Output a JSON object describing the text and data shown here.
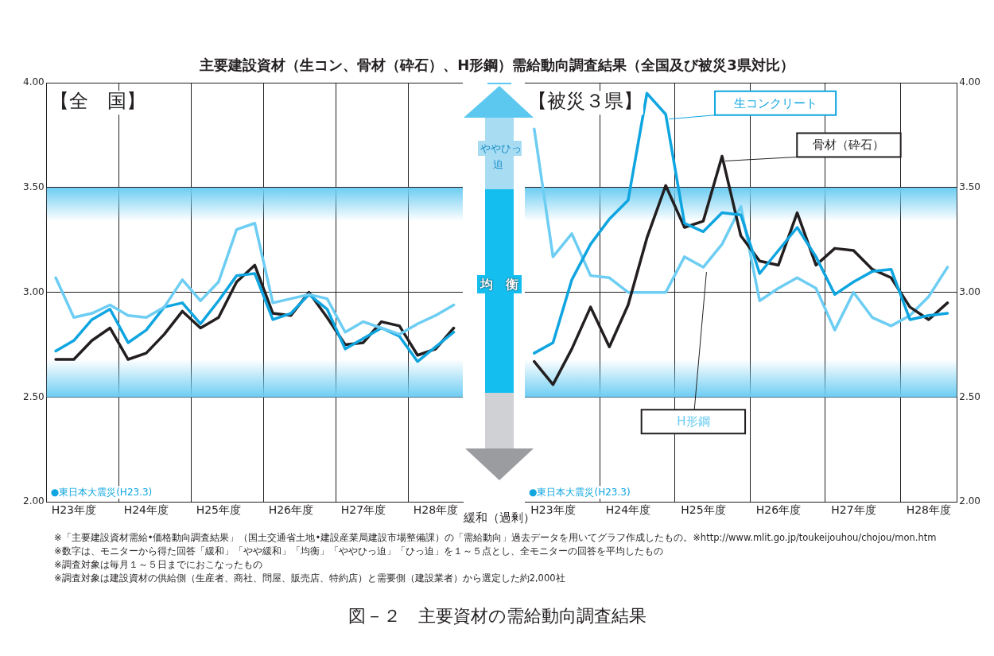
{
  "chart_data": [
    {
      "type": "line",
      "title": "主要建設資材（生コン、骨材（砕石）、H形鋼）需給動向調査結果（全国及び被災3県対比）",
      "subtitle": "【全　国】",
      "categories": [
        null,
        "H23年度",
        null,
        null,
        null,
        "H24年度",
        null,
        null,
        null,
        "H25年度",
        null,
        null,
        null,
        "H26年度",
        null,
        null,
        null,
        "H27年度",
        null,
        null,
        null,
        "H28年度",
        null
      ],
      "series": [
        {
          "color": "#6dcdf3",
          "values": [
            3.07,
            2.88,
            2.9,
            2.94,
            2.89,
            2.88,
            2.93,
            3.06,
            2.96,
            3.05,
            3.3,
            3.33,
            2.95,
            2.97,
            2.99,
            2.97,
            2.81,
            2.86,
            2.83,
            2.8,
            2.85,
            2.89,
            2.94
          ]
        },
        {
          "color": "#0fa5e0",
          "values": [
            2.72,
            2.77,
            2.87,
            2.92,
            2.76,
            2.82,
            2.93,
            2.95,
            2.85,
            2.96,
            3.08,
            3.09,
            2.87,
            2.9,
            2.99,
            2.92,
            2.73,
            2.78,
            2.83,
            2.79,
            2.67,
            2.74,
            2.81
          ]
        },
        {
          "color": "#231f20",
          "values": [
            2.68,
            2.68,
            2.77,
            2.83,
            2.68,
            2.71,
            2.8,
            2.91,
            2.83,
            2.88,
            3.05,
            3.13,
            2.9,
            2.89,
            3.0,
            2.88,
            2.75,
            2.76,
            2.86,
            2.84,
            2.7,
            2.73,
            2.83
          ]
        }
      ],
      "ylim": [
        2,
        4
      ],
      "yticks": [
        {
          "value": 2,
          "label": "2.00"
        },
        {
          "value": 2.5,
          "label": "2.50"
        },
        {
          "value": 3,
          "label": "3.00"
        },
        {
          "value": 3.5,
          "label": "3.50"
        },
        {
          "value": 4,
          "label": "4.00"
        }
      ],
      "bands": [
        {
          "axis": "y",
          "from": 2.5,
          "to": 3.5,
          "color": "#6dcdf3"
        }
      ],
      "grid": true,
      "marker": "none",
      "line_style": "solid",
      "legend": false,
      "annotations": [
        "●東日本大震災(H23.3)",
        "※「主要建設資材需給•価格動向調査結果」（国土交通省土地•建設産業局建設市場整備課）の「需給動向」過去データを用いてグラフ作成したもの。※http://www.mlit.go.jp/toukeijouhou/chojou/mon.htm",
        "※数字は、モニターから得た回答「緩和」「やや緩和」「均衡」「ややひっ迫」「ひっ迫」を１～５点とし、全モニターの回答を平均したもの",
        "※調査対象は毎月１～５日までにおこなったもの",
        "※調査対象は建設資材の供給側（生産者、商社、問屋、販売店、特約店）と需要側（建設業者）から選定した約2,000社",
        "図－２　主要資材の需給動向調査結果"
      ]
    },
    {
      "type": "line",
      "subtitle": "【被災３県】",
      "categories": [
        null,
        "H23年度",
        null,
        null,
        null,
        "H24年度",
        null,
        null,
        null,
        "H25年度",
        null,
        null,
        null,
        "H26年度",
        null,
        null,
        null,
        "H27年度",
        null,
        null,
        null,
        "H28年度",
        null
      ],
      "series": [
        {
          "name": "生コンクリート",
          "color": "#0fa5e0",
          "axis": "y2",
          "values": [
            2.71,
            2.76,
            3.06,
            3.23,
            3.35,
            3.44,
            3.95,
            3.85,
            3.33,
            3.29,
            3.38,
            3.37,
            3.09,
            3.2,
            3.31,
            3.17,
            2.99,
            3.05,
            3.1,
            3.11,
            2.87,
            2.89,
            2.9
          ]
        },
        {
          "name": "骨材（砕石）",
          "color": "#231f20",
          "axis": "y2",
          "values": [
            2.67,
            2.56,
            2.73,
            2.93,
            2.74,
            2.94,
            3.26,
            3.51,
            3.31,
            3.34,
            3.65,
            3.27,
            3.15,
            3.13,
            3.38,
            3.13,
            3.21,
            3.2,
            3.11,
            3.07,
            2.93,
            2.87,
            2.95
          ]
        },
        {
          "name": "H形鋼",
          "color": "#6dcdf3",
          "axis": "y2",
          "values": [
            3.78,
            3.17,
            3.28,
            3.08,
            3.07,
            3.0,
            3.0,
            3.0,
            3.17,
            3.12,
            3.23,
            3.41,
            2.96,
            3.02,
            3.07,
            3.02,
            2.82,
            3.0,
            2.88,
            2.84,
            2.89,
            2.98,
            3.12
          ]
        }
      ],
      "y2lim": [
        2,
        4
      ],
      "y2ticks": [
        {
          "value": 2,
          "label": "2.00"
        },
        {
          "value": 2.5,
          "label": "2.50"
        },
        {
          "value": 3,
          "label": "3.00"
        },
        {
          "value": 3.5,
          "label": "3.50"
        },
        {
          "value": 4,
          "label": "4.00"
        }
      ],
      "bands": [
        {
          "axis": "y2",
          "from": 2.5,
          "to": 3.5,
          "color": "#6dcdf3"
        }
      ],
      "grid": true,
      "marker": "none",
      "line_style": "solid",
      "legend": false,
      "annotations": [
        "●東日本大震災(H23.3)",
        "ややひっ迫",
        "均　衡",
        "緩和（過剰）"
      ]
    }
  ]
}
